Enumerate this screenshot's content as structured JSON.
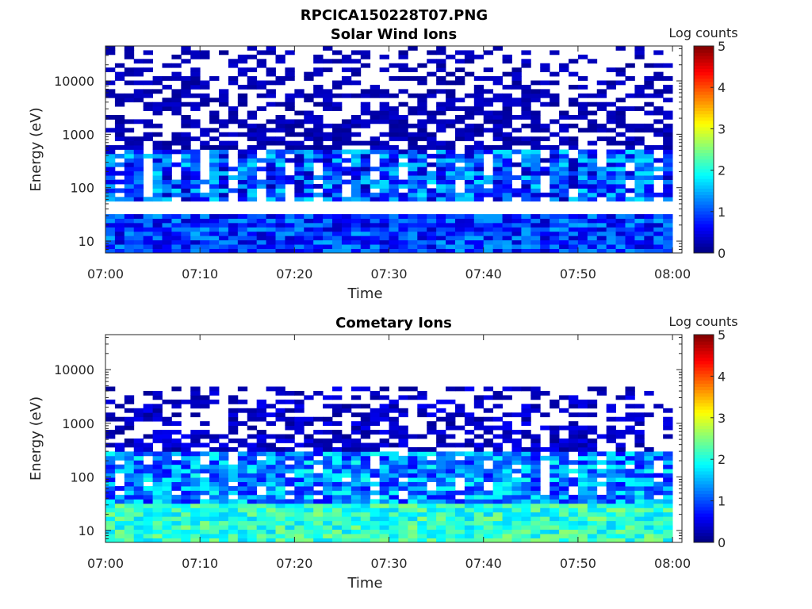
{
  "figure": {
    "title": "RPCICA150228T07.PNG"
  },
  "chart_data": [
    {
      "type": "heatmap",
      "title": "Solar Wind Ions",
      "xlabel": "Time",
      "ylabel": "Energy (eV)",
      "x_ticks": [
        "07:00",
        "07:10",
        "07:20",
        "07:30",
        "07:40",
        "07:50",
        "08:00"
      ],
      "x_range": [
        "07:00",
        "08:01"
      ],
      "y_ticks": [
        "10",
        "100",
        "1000",
        "10000"
      ],
      "y_scale": "log",
      "y_range": [
        6,
        45000
      ],
      "colorbar": {
        "label": "Log counts",
        "ticks": [
          "0",
          "1",
          "2",
          "3",
          "4",
          "5"
        ],
        "range": [
          0,
          5
        ],
        "colormap": "jet"
      },
      "time_bins": 60,
      "description_bands": [
        {
          "energy_range": [
            6,
            30
          ],
          "log_counts_range": [
            0.3,
            1.5
          ]
        },
        {
          "energy_range": [
            60,
            500
          ],
          "log_counts_range": [
            0.2,
            1.8
          ]
        },
        {
          "energy_range": [
            500,
            45000
          ],
          "log_counts_range": [
            0.1,
            0.4
          ],
          "sparse": true
        }
      ]
    },
    {
      "type": "heatmap",
      "title": "Cometary Ions",
      "xlabel": "Time",
      "ylabel": "Energy (eV)",
      "x_ticks": [
        "07:00",
        "07:10",
        "07:20",
        "07:30",
        "07:40",
        "07:50",
        "08:00"
      ],
      "x_range": [
        "07:00",
        "08:01"
      ],
      "y_ticks": [
        "10",
        "100",
        "1000",
        "10000"
      ],
      "y_scale": "log",
      "y_range": [
        6,
        45000
      ],
      "colorbar": {
        "label": "Log counts",
        "ticks": [
          "0",
          "1",
          "2",
          "3",
          "4",
          "5"
        ],
        "range": [
          0,
          5
        ],
        "colormap": "jet"
      },
      "time_bins": 60,
      "description_bands": [
        {
          "energy_range": [
            6,
            30
          ],
          "log_counts_range": [
            1.6,
            2.6
          ]
        },
        {
          "energy_range": [
            30,
            300
          ],
          "log_counts_range": [
            0.6,
            2.0
          ]
        },
        {
          "energy_range": [
            300,
            5000
          ],
          "log_counts_range": [
            0.1,
            0.6
          ],
          "sparse": true
        }
      ]
    }
  ]
}
